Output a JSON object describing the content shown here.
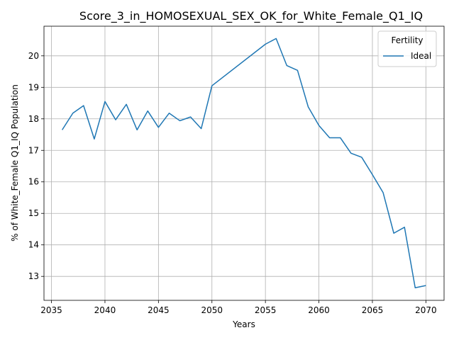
{
  "chart_data": {
    "type": "line",
    "title": "Score_3_in_HOMOSEXUAL_SEX_OK_for_White_Female_Q1_IQ",
    "xlabel": "Years",
    "ylabel": "% of White_Female Q1_IQ Population",
    "xlim": [
      2034.3,
      2071.7
    ],
    "ylim": [
      12.24,
      20.94
    ],
    "xticks": [
      2035,
      2040,
      2045,
      2050,
      2055,
      2060,
      2065,
      2070
    ],
    "yticks": [
      13,
      14,
      15,
      16,
      17,
      18,
      19,
      20
    ],
    "grid": true,
    "legend": {
      "title": "Fertility",
      "placement": "top-right"
    },
    "series": [
      {
        "name": "Ideal",
        "color": "#1f77b4",
        "x": [
          2036,
          2037,
          2038,
          2039,
          2040,
          2041,
          2042,
          2043,
          2044,
          2045,
          2046,
          2047,
          2048,
          2049,
          2050,
          2055,
          2056,
          2057,
          2058,
          2059,
          2060,
          2061,
          2062,
          2063,
          2064,
          2065,
          2066,
          2067,
          2068,
          2069,
          2070
        ],
        "values": [
          17.65,
          18.18,
          18.42,
          17.36,
          18.55,
          17.97,
          18.46,
          17.65,
          18.25,
          17.73,
          18.18,
          17.94,
          18.06,
          17.69,
          19.05,
          20.37,
          20.55,
          19.69,
          19.54,
          18.38,
          17.79,
          17.4,
          17.4,
          16.91,
          16.78,
          16.23,
          15.66,
          14.37,
          14.56,
          12.64,
          12.71
        ]
      }
    ]
  }
}
